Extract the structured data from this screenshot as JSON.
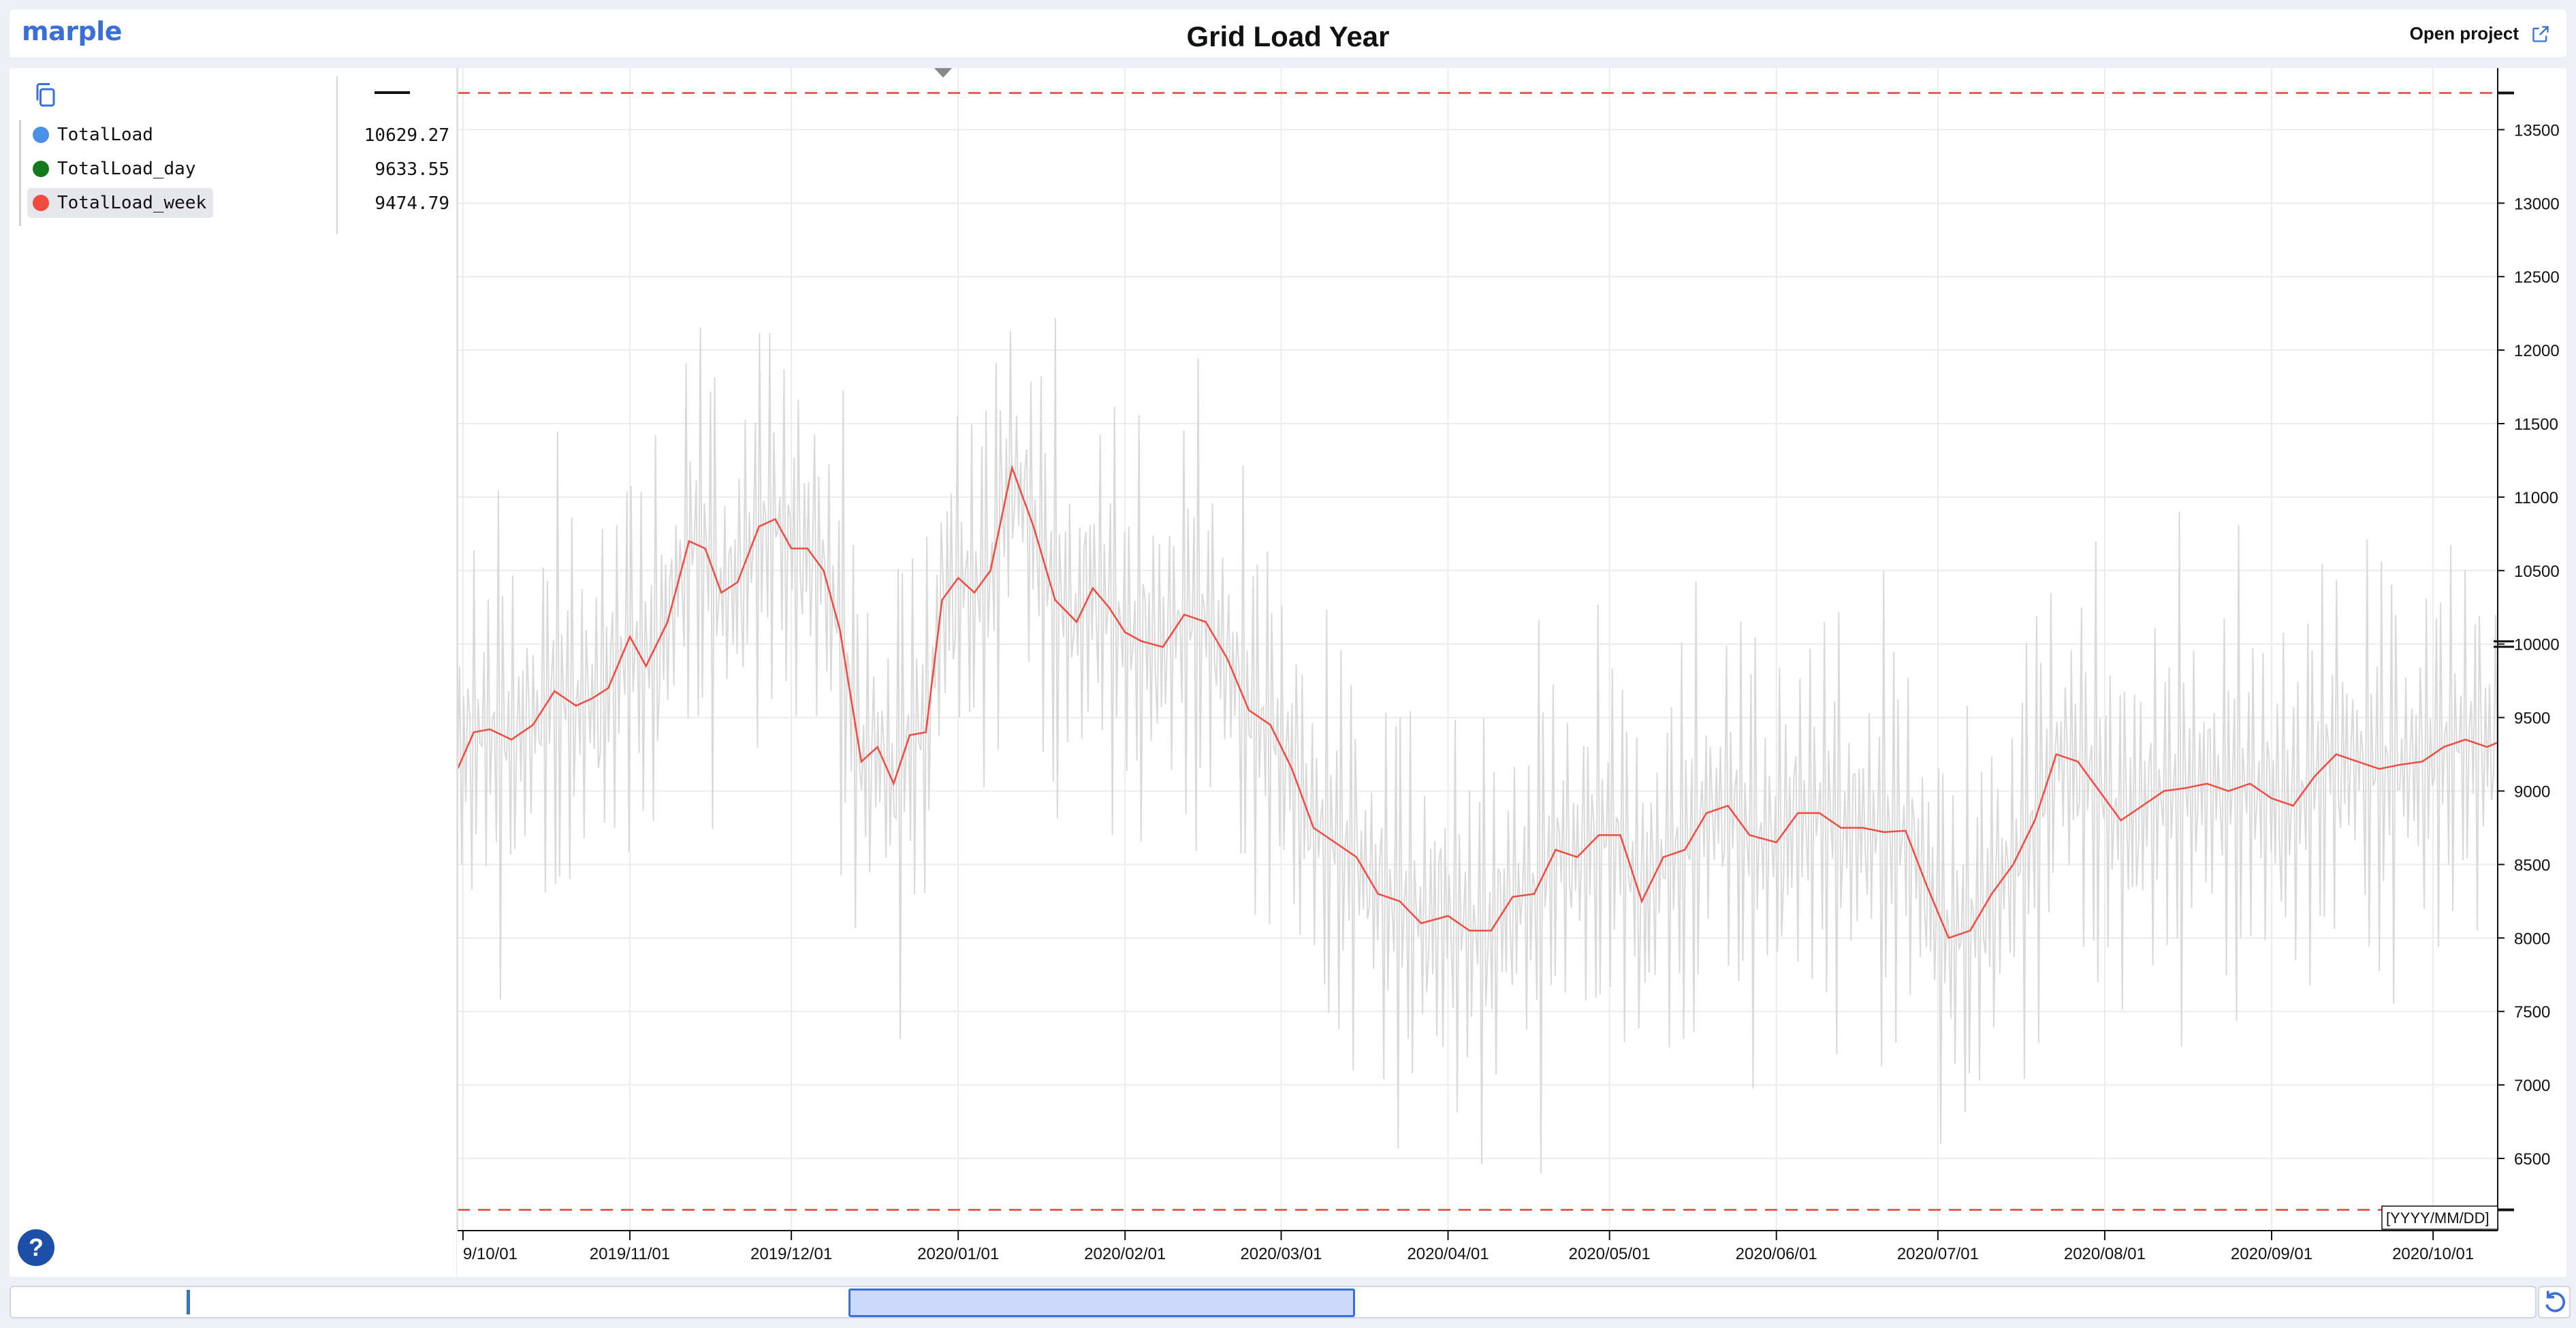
{
  "header": {
    "logo": "marple",
    "title": "Grid Load Year",
    "open_project_label": "Open project"
  },
  "legend": {
    "items": [
      {
        "name": "TotalLoad",
        "value": "10629.27",
        "color": "#4a90e8"
      },
      {
        "name": "TotalLoad_day",
        "value": "9633.55",
        "color": "#157a1c"
      },
      {
        "name": "TotalLoad_week",
        "value": "9474.79",
        "color": "#ef4b40"
      }
    ]
  },
  "help_label": "?",
  "colors": {
    "accent": "#3b6fd8",
    "week_series": "#ef4b40",
    "raw_series": "#d9d9d9"
  },
  "chart_data": {
    "type": "line",
    "y_ticks": [
      "6500",
      "7000",
      "7500",
      "8000",
      "8500",
      "9000",
      "9500",
      "10000",
      "10500",
      "11000",
      "11500",
      "12000",
      "12500",
      "13000",
      "13500"
    ],
    "ylim": [
      6150,
      13780
    ],
    "x_tick_labels": [
      "9/10/01",
      "2019/11/01",
      "2019/12/01",
      "2020/01/01",
      "2020/02/01",
      "2020/03/01",
      "2020/04/01",
      "2020/05/01",
      "2020/06/01",
      "2020/07/01",
      "2020/08/01",
      "2020/09/01",
      "2020/10/01"
    ],
    "xlim": [
      "2019-09-30",
      "2020-10-13"
    ],
    "x_format_label": "[YYYY/MM/DD]",
    "limit_lines": [
      13750,
      6150
    ],
    "grid": true,
    "series": [
      {
        "name": "TotalLoad_week",
        "color": "#ef4b40",
        "x": [
          "2019-09-30",
          "2019-10-03",
          "2019-10-06",
          "2019-10-10",
          "2019-10-14",
          "2019-10-18",
          "2019-10-22",
          "2019-10-25",
          "2019-10-28",
          "2019-11-01",
          "2019-11-04",
          "2019-11-08",
          "2019-11-12",
          "2019-11-15",
          "2019-11-18",
          "2019-11-21",
          "2019-11-25",
          "2019-11-28",
          "2019-12-01",
          "2019-12-04",
          "2019-12-07",
          "2019-12-10",
          "2019-12-14",
          "2019-12-17",
          "2019-12-20",
          "2019-12-23",
          "2019-12-26",
          "2019-12-29",
          "2020-01-01",
          "2020-01-04",
          "2020-01-07",
          "2020-01-11",
          "2020-01-15",
          "2020-01-19",
          "2020-01-23",
          "2020-01-26",
          "2020-01-29",
          "2020-02-01",
          "2020-02-04",
          "2020-02-08",
          "2020-02-12",
          "2020-02-16",
          "2020-02-20",
          "2020-02-24",
          "2020-02-28",
          "2020-03-03",
          "2020-03-07",
          "2020-03-11",
          "2020-03-15",
          "2020-03-19",
          "2020-03-23",
          "2020-03-27",
          "2020-04-01",
          "2020-04-05",
          "2020-04-09",
          "2020-04-13",
          "2020-04-17",
          "2020-04-21",
          "2020-04-25",
          "2020-04-29",
          "2020-05-03",
          "2020-05-07",
          "2020-05-11",
          "2020-05-15",
          "2020-05-19",
          "2020-05-23",
          "2020-05-27",
          "2020-06-01",
          "2020-06-05",
          "2020-06-09",
          "2020-06-13",
          "2020-06-17",
          "2020-06-21",
          "2020-06-25",
          "2020-06-29",
          "2020-07-03",
          "2020-07-07",
          "2020-07-11",
          "2020-07-15",
          "2020-07-19",
          "2020-07-23",
          "2020-07-27",
          "2020-07-31",
          "2020-08-04",
          "2020-08-08",
          "2020-08-12",
          "2020-08-16",
          "2020-08-20",
          "2020-08-24",
          "2020-08-28",
          "2020-09-01",
          "2020-09-05",
          "2020-09-09",
          "2020-09-13",
          "2020-09-17",
          "2020-09-21",
          "2020-09-25",
          "2020-09-29",
          "2020-10-03",
          "2020-10-07",
          "2020-10-11",
          "2020-10-13"
        ],
        "y": [
          9150,
          9400,
          9420,
          9350,
          9450,
          9680,
          9580,
          9630,
          9700,
          10050,
          9850,
          10150,
          10700,
          10650,
          10350,
          10420,
          10800,
          10850,
          10650,
          10650,
          10500,
          10100,
          9200,
          9300,
          9050,
          9380,
          9400,
          10300,
          10450,
          10350,
          10500,
          11200,
          10800,
          10300,
          10150,
          10380,
          10250,
          10080,
          10020,
          9980,
          10200,
          10150,
          9900,
          9550,
          9450,
          9150,
          8750,
          8650,
          8550,
          8300,
          8250,
          8100,
          8150,
          8050,
          8050,
          8280,
          8300,
          8600,
          8550,
          8700,
          8700,
          8250,
          8550,
          8600,
          8850,
          8900,
          8700,
          8650,
          8850,
          8850,
          8750,
          8750,
          8720,
          8730,
          8350,
          8000,
          8050,
          8300,
          8500,
          8800,
          9250,
          9200,
          9000,
          8800,
          8900,
          9000,
          9020,
          9050,
          9000,
          9050,
          8950,
          8900,
          9100,
          9250,
          9200,
          9150,
          9180,
          9200,
          9300,
          9350,
          9300,
          9330
        ]
      }
    ],
    "background_series": {
      "color": "#d9d9d9",
      "description_hidden": true
    }
  }
}
